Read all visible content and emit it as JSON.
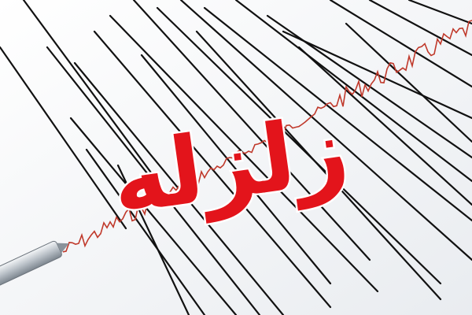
{
  "image": {
    "title_text": "زلزله",
    "colors": {
      "background": "#f4f5f7",
      "ink": "#111111",
      "trace": "#c0392b",
      "title": "#e3141b",
      "outline": "#ffffff"
    },
    "icons": [
      "seismograph-needle-icon"
    ]
  }
}
